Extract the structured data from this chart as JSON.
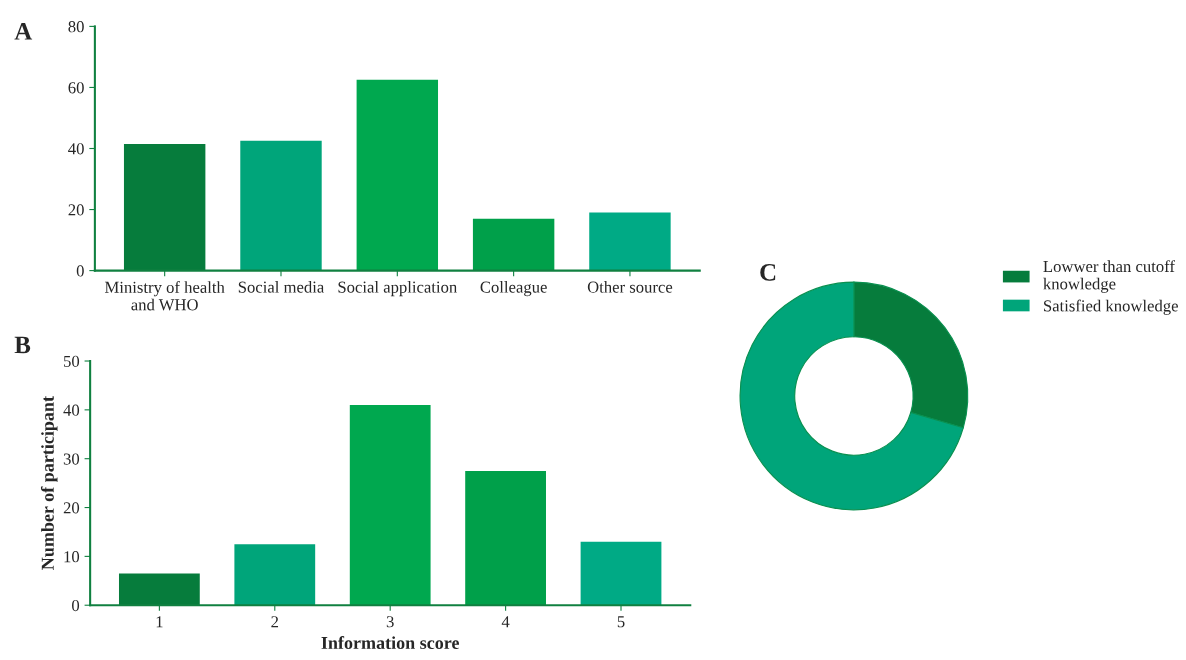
{
  "chart_data": [
    {
      "type": "bar",
      "annotations": [
        "A"
      ],
      "categories": [
        "Ministry of health\nand WHO",
        "Social media",
        "Social application",
        "Colleague",
        "Other source"
      ],
      "values": [
        41.5,
        42.5,
        62.5,
        17,
        19
      ],
      "colors": [
        "#067c3c",
        "#00a57a",
        "#00a84f",
        "#00a04a",
        "#00aa85"
      ],
      "ylim": [
        0,
        80
      ],
      "yticks": [
        0,
        20,
        40,
        60,
        80
      ],
      "grid": false
    },
    {
      "type": "bar",
      "annotations": [
        "B"
      ],
      "xlabel": "Information score",
      "ylabel": "Number of participant",
      "categories": [
        "1",
        "2",
        "3",
        "4",
        "5"
      ],
      "values": [
        6.5,
        12.5,
        41,
        27.5,
        13
      ],
      "colors": [
        "#067c3c",
        "#00a57a",
        "#00a84f",
        "#00a04a",
        "#00aa85"
      ],
      "ylim": [
        0,
        50
      ],
      "yticks": [
        0,
        10,
        20,
        30,
        40,
        50
      ],
      "grid": false
    },
    {
      "type": "donut",
      "annotations": [
        "C"
      ],
      "categories": [
        "Lowwer than cutoff\nknowledge",
        "Satisfied knowledge"
      ],
      "values": [
        29.5,
        70.5
      ],
      "colors": [
        "#067c3c",
        "#00a57a"
      ],
      "legend": "right"
    }
  ]
}
